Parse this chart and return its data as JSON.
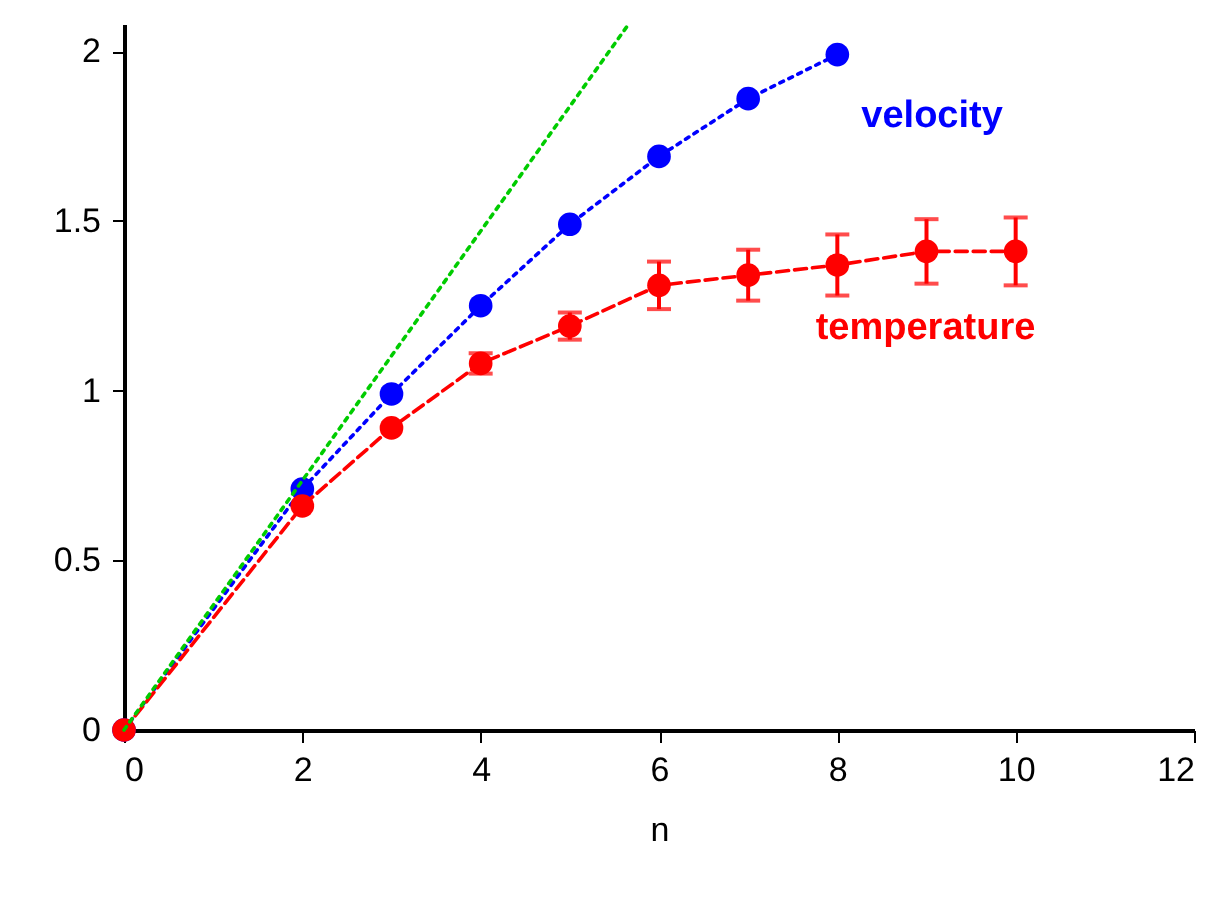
{
  "chart_data": {
    "type": "line",
    "xlabel": "n",
    "xlim": [
      0,
      12
    ],
    "xticks": [
      0,
      2,
      4,
      6,
      8,
      10,
      12
    ],
    "ylim": [
      0,
      2.08
    ],
    "yticks": [
      0,
      0.5,
      1,
      1.5,
      2
    ],
    "grid": false,
    "marker": "circle",
    "series": [
      {
        "name": "velocity",
        "color": "#0000ff",
        "line_style": "dotted",
        "x": [
          0,
          2,
          3,
          4,
          5,
          6,
          7,
          8
        ],
        "values": [
          0,
          0.71,
          0.99,
          1.25,
          1.49,
          1.69,
          1.86,
          1.99
        ]
      },
      {
        "name": "temperature",
        "color": "#ff0000",
        "line_style": "dashed",
        "x": [
          0,
          2,
          3,
          4,
          5,
          6,
          7,
          8,
          9,
          10
        ],
        "values": [
          0,
          0.66,
          0.89,
          1.08,
          1.19,
          1.31,
          1.34,
          1.37,
          1.41,
          1.41
        ],
        "errors": [
          null,
          null,
          null,
          0.03,
          0.04,
          0.07,
          0.075,
          0.09,
          0.095,
          0.1
        ]
      },
      {
        "type": "line",
        "color": "#00cc00",
        "line_style": "dotted",
        "marker": "none",
        "x": [
          0,
          5.65
        ],
        "values": [
          0,
          2.076
        ]
      }
    ]
  }
}
